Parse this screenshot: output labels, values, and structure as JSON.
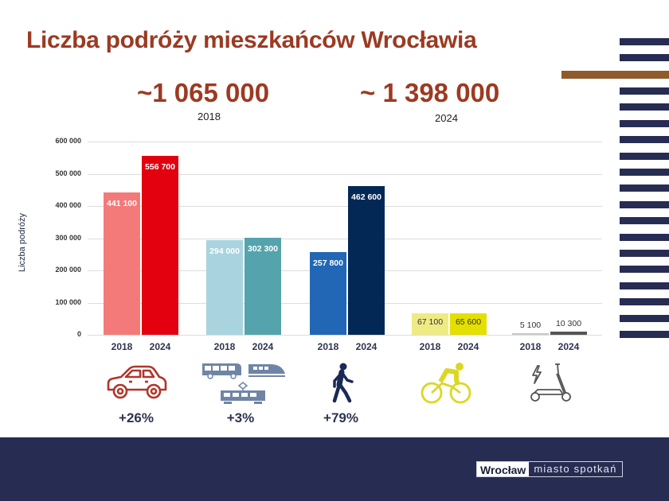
{
  "title": "Liczba podróży mieszkańców Wrocławia",
  "totals": [
    {
      "value": "~1 065 000",
      "year": "2018"
    },
    {
      "value": "~ 1 398 000",
      "year": "2024"
    }
  ],
  "colors": {
    "title": "#9c3a22",
    "navy": "#272c52",
    "brown": "#8f5a2c"
  },
  "footer": {
    "logo_city": "Wrocław",
    "logo_tagline": "miasto spotkań"
  },
  "chart_data": {
    "type": "bar",
    "title": "Liczba podróży mieszkańców Wrocławia",
    "ylabel": "Liczba podróży",
    "xlabel": "",
    "ylim": [
      0,
      600000
    ],
    "yticks": [
      "0",
      "100 000",
      "200 000",
      "300 000",
      "400 000",
      "500 000",
      "600 000"
    ],
    "grid": true,
    "categories": [
      "Samochód",
      "Komunikacja zbiorowa",
      "Pieszo",
      "Rower",
      "Hulajnoga"
    ],
    "series": [
      {
        "name": "2018",
        "values": [
          441100,
          294000,
          257800,
          67100,
          5100
        ]
      },
      {
        "name": "2024",
        "values": [
          556700,
          302300,
          462600,
          65600,
          10300
        ]
      }
    ],
    "groups": [
      {
        "icon": "car-icon",
        "change": "+26%",
        "bars": [
          {
            "year": "2018",
            "value": 441100,
            "label": "441 100",
            "color": "#f47a7a"
          },
          {
            "year": "2024",
            "value": 556700,
            "label": "556 700",
            "color": "#e3000f"
          }
        ]
      },
      {
        "icon": "public-transport-icon",
        "change": "+3%",
        "bars": [
          {
            "year": "2018",
            "value": 294000,
            "label": "294 000",
            "color": "#a9d4df"
          },
          {
            "year": "2024",
            "value": 302300,
            "label": "302 300",
            "color": "#55a4ad"
          }
        ]
      },
      {
        "icon": "pedestrian-icon",
        "change": "+79%",
        "bars": [
          {
            "year": "2018",
            "value": 257800,
            "label": "257 800",
            "color": "#2167b6"
          },
          {
            "year": "2024",
            "value": 462600,
            "label": "462 600",
            "color": "#032856"
          }
        ]
      },
      {
        "icon": "bicycle-icon",
        "change": "",
        "bars": [
          {
            "year": "2018",
            "value": 67100,
            "label": "67 100",
            "color": "#eeeb85"
          },
          {
            "year": "2024",
            "value": 65600,
            "label": "65 600",
            "color": "#e3e000"
          }
        ]
      },
      {
        "icon": "e-scooter-icon",
        "change": "",
        "bars": [
          {
            "year": "2018",
            "value": 5100,
            "label": "5 100",
            "color": "#c7c7c7"
          },
          {
            "year": "2024",
            "value": 10300,
            "label": "10 300",
            "color": "#555555"
          }
        ]
      }
    ]
  }
}
